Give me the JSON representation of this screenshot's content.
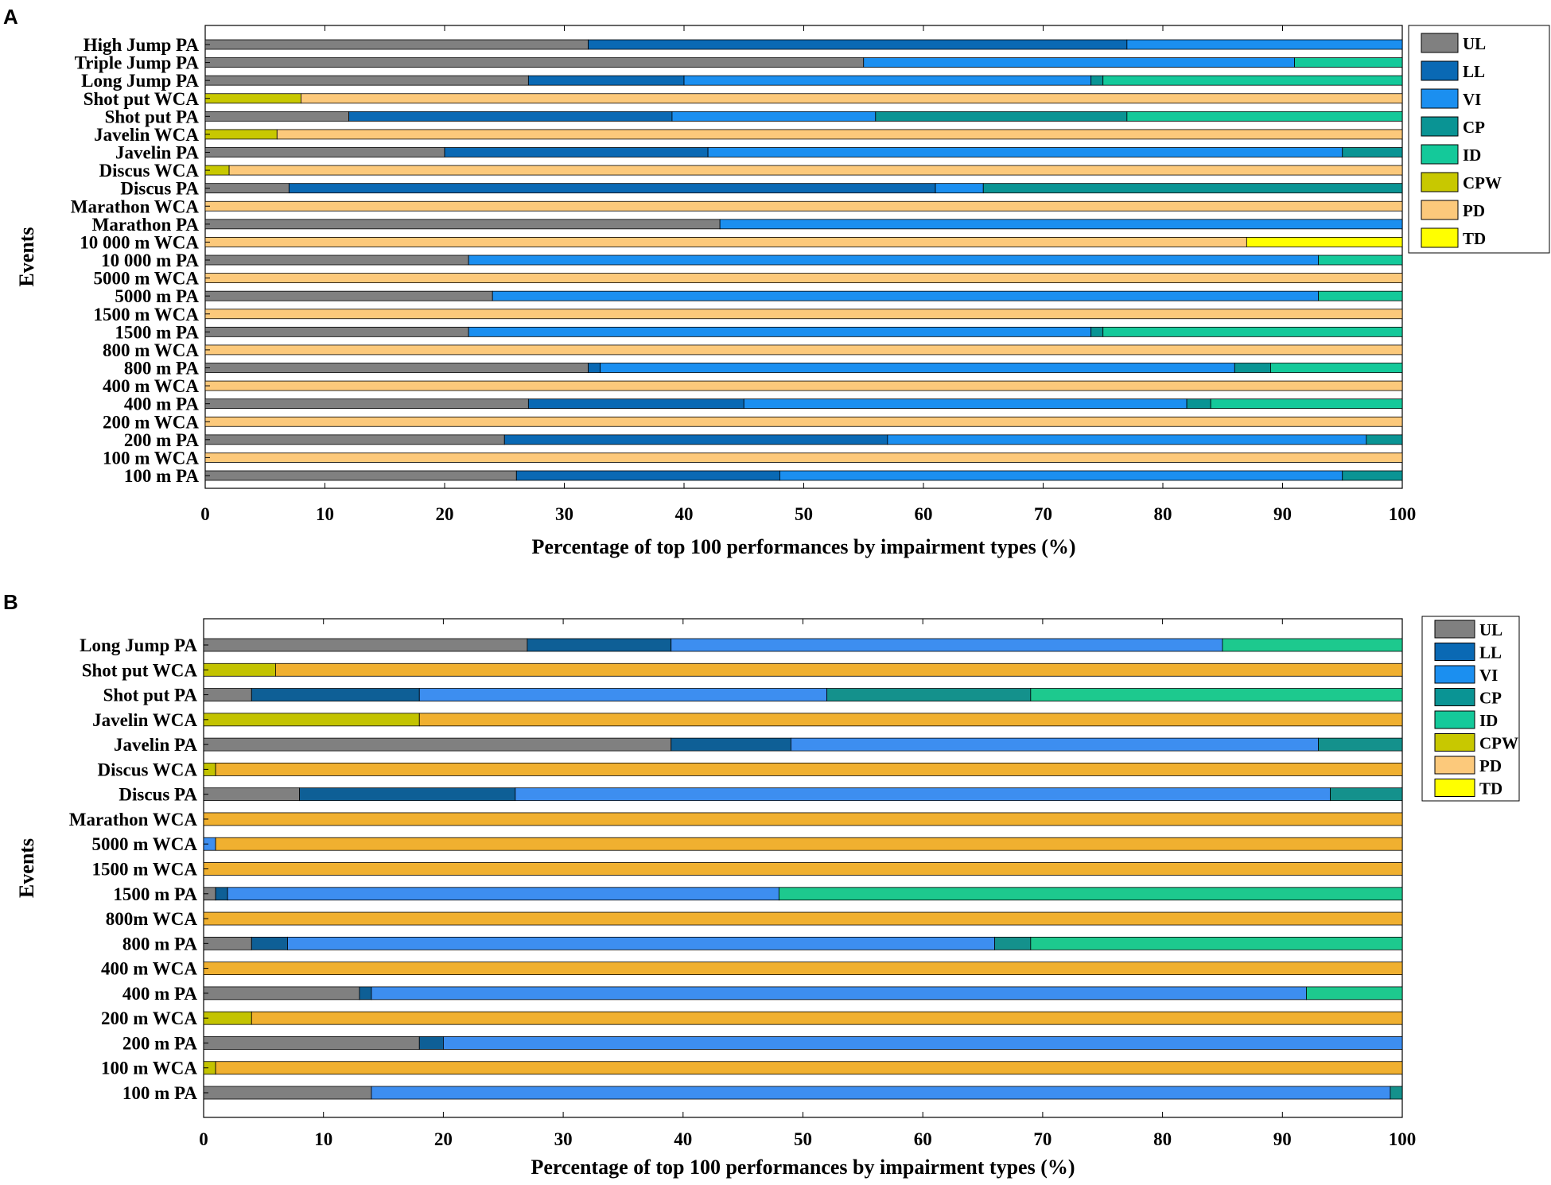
{
  "chart_data": [
    {
      "panel": "A",
      "type": "bar",
      "orientation": "horizontal",
      "stacked": true,
      "xlabel": "Percentage of top 100 performances by impairment types  (%)",
      "ylabel": "Events",
      "xlim": [
        0,
        100
      ],
      "xticks": [
        "0",
        "10",
        "20",
        "30",
        "40",
        "50",
        "60",
        "70",
        "80",
        "90",
        "100"
      ],
      "legend_position": "outside-right",
      "categories": [
        "High Jump PA",
        "Triple Jump PA",
        "Long Jump PA",
        "Shot put WCA",
        "Shot put PA",
        "Javelin WCA",
        "Javelin PA",
        "Discus WCA",
        "Discus PA",
        "Marathon WCA",
        "Marathon PA",
        "10 000 m WCA",
        "10 000 m PA",
        "5000 m WCA",
        "5000 m PA",
        "1500 m WCA",
        "1500 m PA",
        "800 m WCA",
        "800 m PA",
        "400 m WCA",
        "400 m PA",
        "200 m WCA",
        "200 m PA",
        "100 m WCA",
        "100 m PA"
      ],
      "series": [
        {
          "name": "UL",
          "color": "#808080",
          "values": [
            32,
            55,
            27,
            0,
            12,
            0,
            20,
            0,
            7,
            0,
            43,
            0,
            22,
            0,
            24,
            0,
            22,
            0,
            32,
            0,
            27,
            0,
            25,
            0,
            26
          ]
        },
        {
          "name": "LL",
          "color": "#0a69b4",
          "values": [
            45,
            0,
            13,
            0,
            27,
            0,
            22,
            0,
            54,
            0,
            0,
            0,
            0,
            0,
            0,
            0,
            0,
            0,
            1,
            0,
            18,
            0,
            32,
            0,
            22
          ]
        },
        {
          "name": "VI",
          "color": "#1b8ff0",
          "values": [
            23,
            36,
            34,
            0,
            17,
            0,
            53,
            0,
            4,
            0,
            57,
            0,
            71,
            0,
            69,
            0,
            52,
            0,
            53,
            0,
            37,
            0,
            40,
            0,
            47
          ]
        },
        {
          "name": "CP",
          "color": "#0a9494",
          "values": [
            0,
            0,
            1,
            0,
            21,
            0,
            5,
            0,
            35,
            0,
            0,
            0,
            0,
            0,
            0,
            0,
            1,
            0,
            3,
            0,
            2,
            0,
            3,
            0,
            5
          ]
        },
        {
          "name": "ID",
          "color": "#14c99a",
          "values": [
            0,
            9,
            25,
            0,
            23,
            0,
            0,
            0,
            0,
            0,
            0,
            0,
            7,
            0,
            7,
            0,
            25,
            0,
            11,
            0,
            16,
            0,
            0,
            0,
            0
          ]
        },
        {
          "name": "CPW",
          "color": "#c8c800",
          "values": [
            0,
            0,
            0,
            8,
            0,
            6,
            0,
            2,
            0,
            0,
            0,
            0,
            0,
            0,
            0,
            0,
            0,
            0,
            0,
            0,
            0,
            0,
            0,
            0,
            0
          ]
        },
        {
          "name": "PD",
          "color": "#fcc97b",
          "values": [
            0,
            0,
            0,
            92,
            0,
            94,
            0,
            98,
            0,
            100,
            0,
            87,
            0,
            100,
            0,
            100,
            0,
            100,
            0,
            100,
            0,
            100,
            0,
            100,
            0
          ]
        },
        {
          "name": "TD",
          "color": "#ffff00",
          "values": [
            0,
            0,
            0,
            0,
            0,
            0,
            0,
            0,
            0,
            0,
            0,
            13,
            0,
            0,
            0,
            0,
            0,
            0,
            0,
            0,
            0,
            0,
            0,
            0,
            0
          ]
        }
      ]
    },
    {
      "panel": "B",
      "type": "bar",
      "orientation": "horizontal",
      "stacked": true,
      "xlabel": "Percentage of top 100 performances by impairment types (%)",
      "ylabel": "Events",
      "xlim": [
        0,
        100
      ],
      "xticks": [
        "0",
        "10",
        "20",
        "30",
        "40",
        "50",
        "60",
        "70",
        "80",
        "90",
        "100"
      ],
      "legend_position": "outside-right",
      "categories": [
        "Long Jump PA",
        "Shot put WCA",
        "Shot put PA",
        "Javelin WCA",
        "Javelin PA",
        "Discus WCA",
        "Discus PA",
        "Marathon WCA",
        "5000 m WCA",
        "1500 m WCA",
        "1500 m PA",
        "800m WCA",
        "800 m PA",
        "400 m WCA",
        "400 m PA",
        "200 m WCA",
        "200 m PA",
        "100 m WCA",
        "100 m PA"
      ],
      "series": [
        {
          "name": "UL",
          "color": "#808080",
          "values": [
            27,
            0,
            4,
            0,
            39,
            0,
            8,
            0,
            0,
            0,
            1,
            0,
            4,
            0,
            13,
            0,
            18,
            0,
            14
          ]
        },
        {
          "name": "LL",
          "color": "#0e5f96",
          "values": [
            12,
            0,
            14,
            0,
            10,
            0,
            18,
            0,
            0,
            0,
            1,
            0,
            3,
            0,
            1,
            0,
            2,
            0,
            0
          ]
        },
        {
          "name": "VI",
          "color": "#3d8ef0",
          "values": [
            46,
            0,
            34,
            0,
            44,
            0,
            68,
            0,
            1,
            0,
            46,
            0,
            59,
            0,
            78,
            0,
            80,
            0,
            85
          ]
        },
        {
          "name": "CP",
          "color": "#14918c",
          "values": [
            0,
            0,
            17,
            0,
            7,
            0,
            6,
            0,
            0,
            0,
            0,
            0,
            3,
            0,
            0,
            0,
            0,
            0,
            1
          ]
        },
        {
          "name": "ID",
          "color": "#1dc98e",
          "values": [
            15,
            0,
            31,
            0,
            0,
            0,
            0,
            0,
            0,
            0,
            52,
            0,
            31,
            0,
            8,
            0,
            0,
            0,
            0
          ]
        },
        {
          "name": "CPW",
          "color": "#c3c300",
          "values": [
            0,
            6,
            0,
            18,
            0,
            1,
            0,
            0,
            0,
            0,
            0,
            0,
            0,
            0,
            0,
            4,
            0,
            1,
            0
          ]
        },
        {
          "name": "PD",
          "color": "#f0b030",
          "values": [
            0,
            94,
            0,
            82,
            0,
            99,
            0,
            100,
            99,
            100,
            0,
            100,
            0,
            100,
            0,
            96,
            0,
            99,
            0
          ]
        },
        {
          "name": "TD",
          "color": "#ffff00",
          "values": [
            0,
            0,
            0,
            0,
            0,
            0,
            0,
            0,
            0,
            0,
            0,
            0,
            0,
            0,
            0,
            0,
            0,
            0,
            0
          ]
        }
      ],
      "legend_swatch_colors": [
        "#808080",
        "#0a69b4",
        "#1b8ff0",
        "#0a9494",
        "#14c99a",
        "#c8c800",
        "#fcc97b",
        "#ffff00"
      ]
    }
  ]
}
